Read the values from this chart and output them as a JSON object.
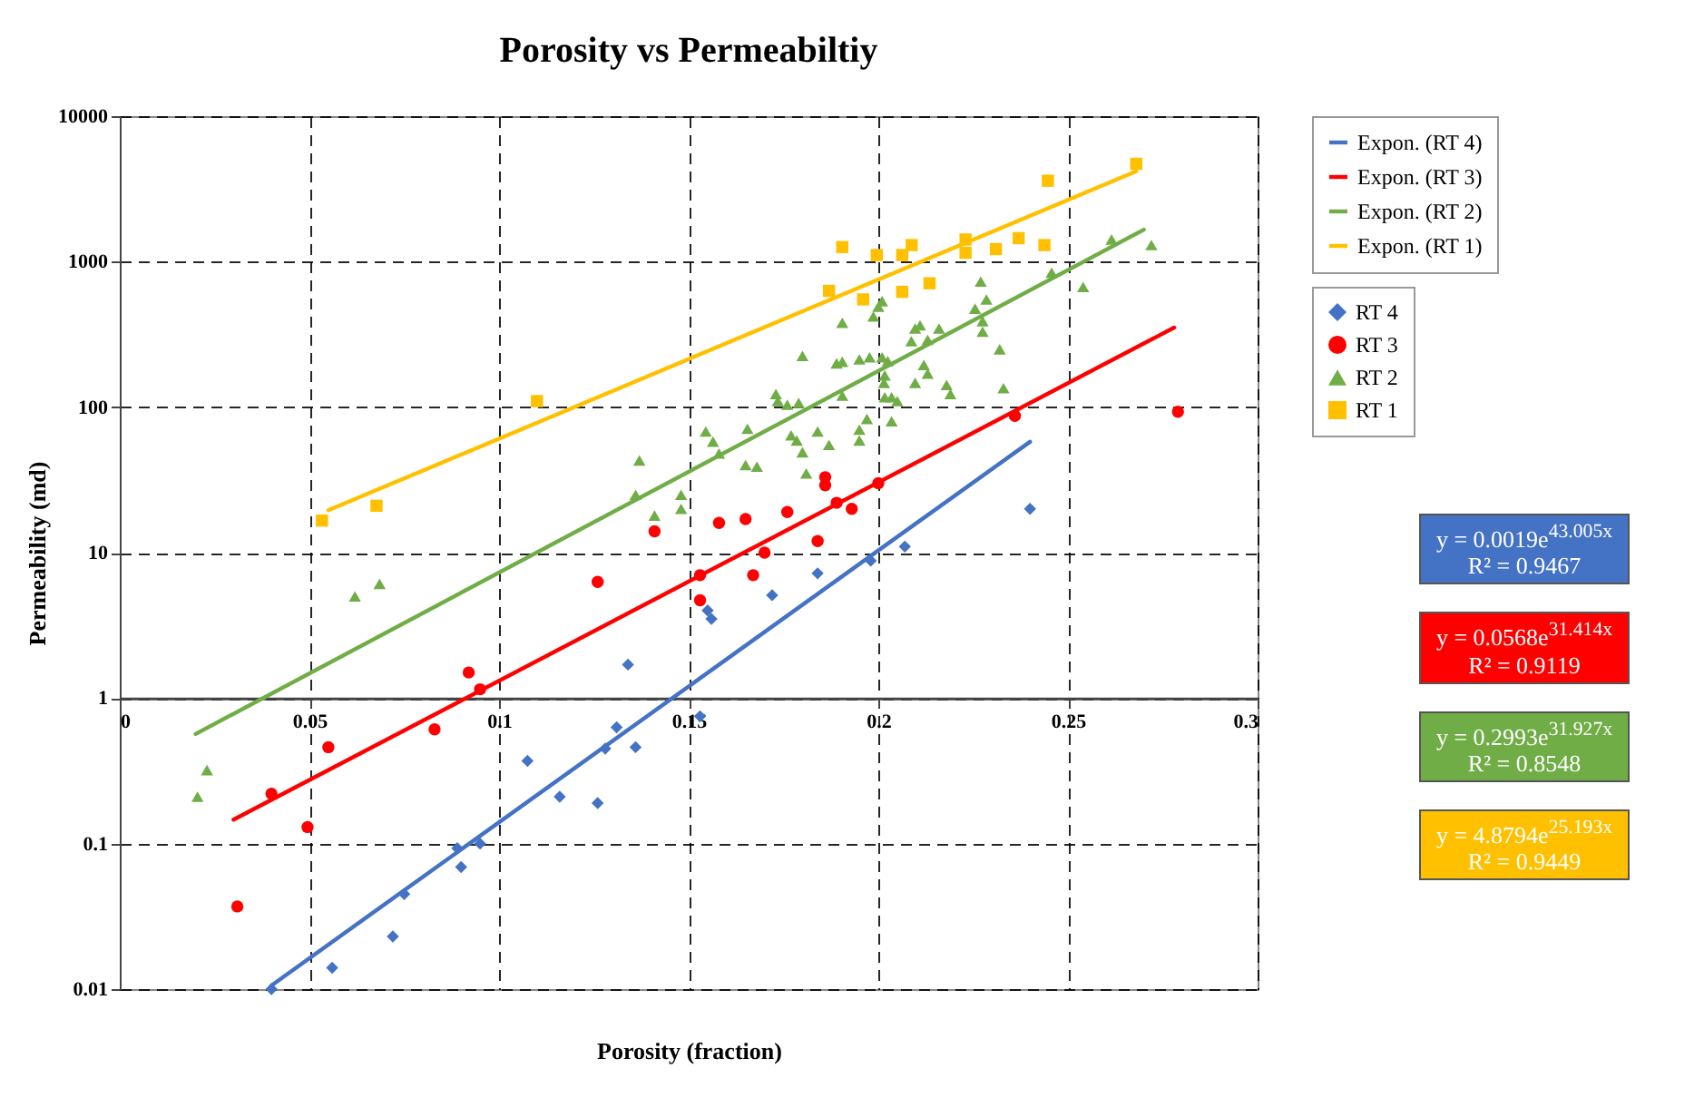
{
  "chart_data": {
    "type": "scatter",
    "title": "Porosity vs Permeabiltiy",
    "xlabel": "Porosity (fraction)",
    "ylabel": "Permeability (md)",
    "xlim": [
      0,
      0.3
    ],
    "xticks": [
      0,
      0.05,
      0.1,
      0.15,
      0.2,
      0.25,
      0.3
    ],
    "ylim": [
      0.01,
      10000
    ],
    "yticks": [
      0.01,
      0.1,
      1,
      10,
      100,
      1000,
      10000
    ],
    "log": true,
    "grid": true,
    "legend": "right",
    "annotations": [
      "y = 0.0019e$^{43.005x}$ R² = 0.9467",
      "y = 0.0568e$^{31.414x}$ R² = 0.9119",
      "y = 0.2993e$^{31.927x}$ R² = 0.8548",
      "y = 4.8794e$^{25.193x}$ R² = 0.9449"
    ],
    "series": [
      {
        "name": "RT 4",
        "marker": "diamond",
        "color": "#4472c4",
        "x": [
          0.04,
          0.056,
          0.072,
          0.075,
          0.089,
          0.09,
          0.095,
          0.1075,
          0.116,
          0.126,
          0.128,
          0.131,
          0.136,
          0.134,
          0.153,
          0.155,
          0.156,
          0.172,
          0.184,
          0.198,
          0.207,
          0.24
        ],
        "values": [
          0.01,
          0.014,
          0.023,
          0.045,
          0.093,
          0.069,
          0.1,
          0.37,
          0.21,
          0.19,
          0.45,
          0.63,
          0.46,
          1.7,
          0.75,
          4.0,
          3.5,
          5.1,
          7.2,
          8.8,
          11,
          20
        ]
      },
      {
        "name": "RT 3",
        "marker": "circle",
        "color": "#ff0000",
        "x": [
          0.031,
          0.04,
          0.0495,
          0.055,
          0.083,
          0.092,
          0.095,
          0.126,
          0.141,
          0.153,
          0.153,
          0.158,
          0.165,
          0.167,
          0.17,
          0.176,
          0.184,
          0.186,
          0.186,
          0.189,
          0.193,
          0.2,
          0.236,
          0.279
        ],
        "values": [
          0.037,
          0.22,
          0.13,
          0.46,
          0.61,
          1.5,
          1.15,
          6.3,
          14,
          7.0,
          4.7,
          16,
          17,
          7,
          10,
          19,
          12,
          29,
          33,
          22,
          20,
          30,
          87,
          93
        ]
      },
      {
        "name": "RT 2",
        "marker": "triangle",
        "color": "#70ad47",
        "x": [
          0.0205,
          0.023,
          0.062,
          0.0685,
          0.137,
          0.136,
          0.141,
          0.148,
          0.148,
          0.1545,
          0.1564,
          0.158,
          0.1655,
          0.165,
          0.168,
          0.173,
          0.1735,
          0.176,
          0.179,
          0.177,
          0.1785,
          0.18,
          0.181,
          0.184,
          0.187,
          0.1905,
          0.189,
          0.1905,
          0.195,
          0.1977,
          0.197,
          0.195,
          0.195,
          0.1905,
          0.18,
          0.1987,
          0.2,
          0.2017,
          0.2017,
          0.201,
          0.201,
          0.2097,
          0.211,
          0.2087,
          0.216,
          0.213,
          0.2025,
          0.2015,
          0.2035,
          0.205,
          0.2035,
          0.2097,
          0.212,
          0.213,
          0.218,
          0.219,
          0.2255,
          0.227,
          0.2285,
          0.2275,
          0.2275,
          0.232,
          0.233,
          0.2457,
          0.254,
          0.2615,
          0.272
        ],
        "values": [
          0.21,
          0.32,
          5.0,
          6.1,
          43,
          25,
          18,
          25,
          20,
          68,
          58,
          48,
          71,
          40,
          39,
          123,
          110,
          104,
          107,
          64,
          59,
          49,
          35,
          68,
          55,
          120,
          200,
          205,
          213,
          220,
          83,
          70,
          59,
          380,
          225,
          420,
          490,
          165,
          117,
          220,
          535,
          347,
          365,
          284,
          347,
          290,
          207,
          147,
          117,
          110,
          80,
          147,
          195,
          170,
          142,
          123,
          475,
          730,
          550,
          390,
          330,
          250,
          135,
          840,
          670,
          1420,
          1300
        ]
      },
      {
        "name": "RT 1",
        "marker": "square",
        "color": "#ffc000",
        "x": [
          0.0533,
          0.0677,
          0.11,
          0.1905,
          0.1996,
          0.187,
          0.196,
          0.2063,
          0.2088,
          0.2063,
          0.2135,
          0.223,
          0.223,
          0.231,
          0.237,
          0.2438,
          0.2447,
          0.268
        ],
        "values": [
          16.6,
          21,
          110,
          1260,
          1110,
          630,
          550,
          1110,
          1300,
          620,
          710,
          1420,
          1150,
          1220,
          1450,
          1300,
          3600,
          4700
        ]
      },
      {
        "name": "Expon. (RT 4)",
        "type": "line",
        "color": "#4472c4",
        "x": [
          0.04,
          0.24
        ],
        "values": [
          0.0106,
          57.8
        ]
      },
      {
        "name": "Expon. (RT 3)",
        "type": "line",
        "color": "#ff0000",
        "x": [
          0.03,
          0.278
        ],
        "values": [
          0.146,
          352
        ]
      },
      {
        "name": "Expon. (RT 2)",
        "type": "line",
        "color": "#70ad47",
        "x": [
          0.02,
          0.27
        ],
        "values": [
          0.567,
          1658
        ]
      },
      {
        "name": "Expon. (RT 1)",
        "type": "line",
        "color": "#ffc000",
        "x": [
          0.055,
          0.268
        ],
        "values": [
          19.55,
          4177
        ]
      }
    ]
  }
}
